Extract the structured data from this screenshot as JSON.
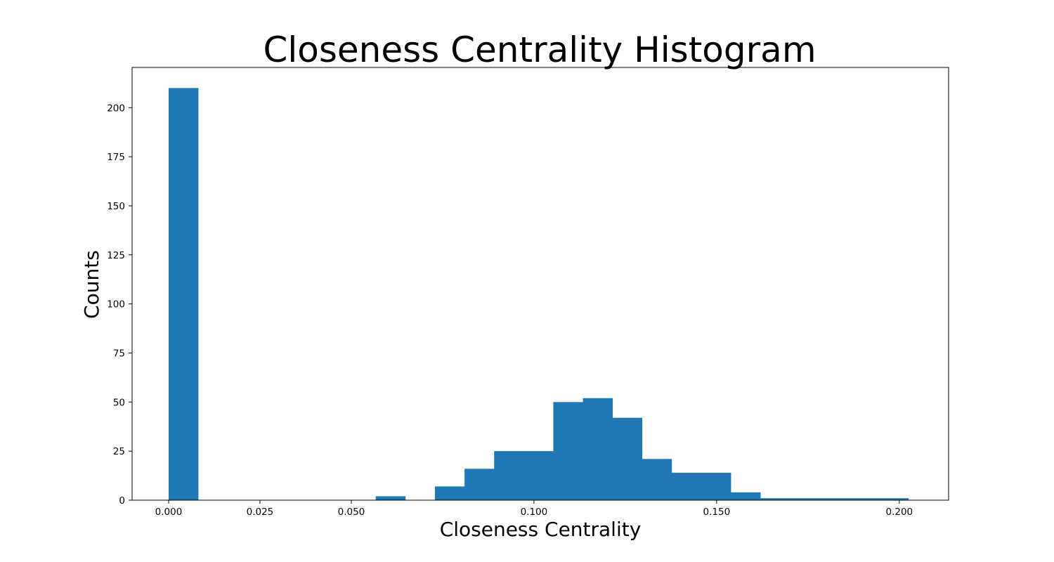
{
  "chart_data": {
    "type": "bar",
    "title": "Closeness Centrality Histogram",
    "xlabel": "Closeness Centrality",
    "ylabel": "Counts",
    "xlim": [
      -0.01,
      0.2135
    ],
    "ylim": [
      0,
      220.5
    ],
    "grid": false,
    "color": "#1f77b4",
    "xticks": [
      0.0,
      0.025,
      0.05,
      0.1,
      0.15,
      0.2
    ],
    "xtick_labels": [
      "0.000",
      "0.025",
      "0.050",
      "0.100",
      "0.150",
      "0.200"
    ],
    "yticks": [
      0,
      25,
      50,
      75,
      100,
      125,
      150,
      175,
      200
    ],
    "ytick_labels": [
      "0",
      "25",
      "50",
      "75",
      "100",
      "125",
      "150",
      "175",
      "200"
    ],
    "bins": [
      {
        "x0": 0.0,
        "x1": 0.0081,
        "count": 210
      },
      {
        "x0": 0.0081,
        "x1": 0.0162,
        "count": 0
      },
      {
        "x0": 0.0162,
        "x1": 0.0243,
        "count": 0
      },
      {
        "x0": 0.0243,
        "x1": 0.0324,
        "count": 0
      },
      {
        "x0": 0.0324,
        "x1": 0.0405,
        "count": 0
      },
      {
        "x0": 0.0405,
        "x1": 0.0486,
        "count": 0
      },
      {
        "x0": 0.0486,
        "x1": 0.0567,
        "count": 0
      },
      {
        "x0": 0.0567,
        "x1": 0.0648,
        "count": 2
      },
      {
        "x0": 0.0648,
        "x1": 0.0729,
        "count": 0
      },
      {
        "x0": 0.0729,
        "x1": 0.081,
        "count": 7
      },
      {
        "x0": 0.081,
        "x1": 0.0891,
        "count": 16
      },
      {
        "x0": 0.0891,
        "x1": 0.0972,
        "count": 25
      },
      {
        "x0": 0.0972,
        "x1": 0.1053,
        "count": 25
      },
      {
        "x0": 0.1053,
        "x1": 0.1134,
        "count": 50
      },
      {
        "x0": 0.1134,
        "x1": 0.1215,
        "count": 52
      },
      {
        "x0": 0.1215,
        "x1": 0.1296,
        "count": 42
      },
      {
        "x0": 0.1296,
        "x1": 0.1377,
        "count": 21
      },
      {
        "x0": 0.1377,
        "x1": 0.1458,
        "count": 14
      },
      {
        "x0": 0.1458,
        "x1": 0.1539,
        "count": 14
      },
      {
        "x0": 0.1539,
        "x1": 0.162,
        "count": 4
      },
      {
        "x0": 0.162,
        "x1": 0.1701,
        "count": 1
      },
      {
        "x0": 0.1701,
        "x1": 0.1782,
        "count": 1
      },
      {
        "x0": 0.1782,
        "x1": 0.1863,
        "count": 1
      },
      {
        "x0": 0.1863,
        "x1": 0.1944,
        "count": 1
      },
      {
        "x0": 0.1944,
        "x1": 0.2025,
        "count": 1
      }
    ]
  }
}
